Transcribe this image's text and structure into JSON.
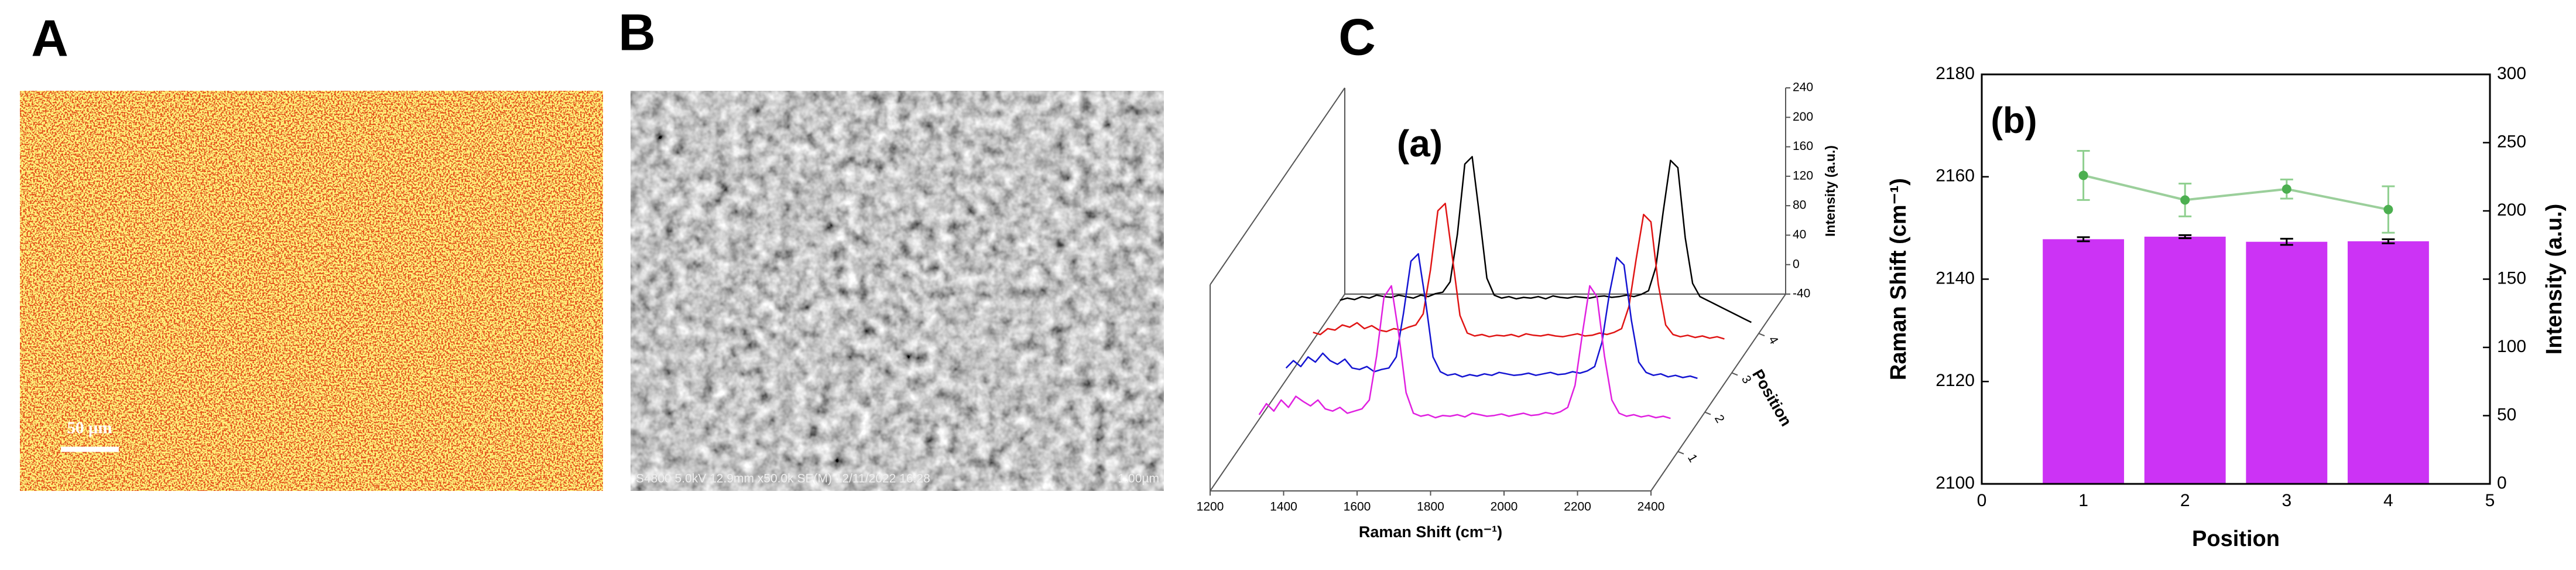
{
  "panels": {
    "A": {
      "label": "A",
      "scale_bar": "50 µm"
    },
    "B": {
      "label": "B",
      "caption": "S4800 5.0kV 12.9mm x50.0k SE(M) 12/11/2022 16:28",
      "scale_bar": "1.00µm"
    },
    "C": {
      "label": "C"
    }
  },
  "chart_data": [
    {
      "type": "waterfall",
      "annotation": "(a)",
      "xlabel": "Raman Shift (cm⁻¹)",
      "ylabel": "Intensity (a.u.)",
      "zlabel": "Position",
      "x": [
        1260,
        1280,
        1300,
        1320,
        1340,
        1360,
        1380,
        1400,
        1420,
        1440,
        1460,
        1480,
        1500,
        1520,
        1540,
        1560,
        1580,
        1600,
        1620,
        1640,
        1660,
        1680,
        1700,
        1720,
        1740,
        1760,
        1780,
        1800,
        1820,
        1840,
        1860,
        1880,
        1900,
        1920,
        1940,
        1960,
        1980,
        2000,
        2020,
        2040,
        2060,
        2080,
        2100,
        2120,
        2140,
        2160,
        2180,
        2200,
        2220,
        2240,
        2260,
        2280,
        2300,
        2320,
        2340,
        2360,
        2380
      ],
      "xlim": [
        1200,
        2400
      ],
      "xticks": [
        1200,
        1400,
        1600,
        1800,
        2000,
        2200,
        2400
      ],
      "ylim": [
        -40,
        240
      ],
      "yticks": [
        -40,
        0,
        40,
        80,
        120,
        160,
        200,
        240
      ],
      "zlim": [
        0,
        5
      ],
      "zticks": [
        1,
        2,
        3,
        4
      ],
      "series": [
        {
          "color": "#e020e0",
          "values": [
            10,
            25,
            15,
            30,
            20,
            35,
            28,
            22,
            30,
            18,
            15,
            20,
            12,
            15,
            18,
            30,
            90,
            170,
            185,
            120,
            40,
            12,
            8,
            10,
            6,
            9,
            8,
            10,
            7,
            12,
            10,
            8,
            9,
            11,
            8,
            10,
            12,
            9,
            10,
            13,
            11,
            14,
            20,
            50,
            120,
            185,
            170,
            90,
            30,
            12,
            8,
            10,
            7,
            9,
            6,
            8,
            5
          ]
        },
        {
          "color": "#1414d2",
          "values": [
            20,
            30,
            22,
            35,
            28,
            40,
            30,
            25,
            32,
            20,
            18,
            22,
            15,
            18,
            20,
            35,
            95,
            165,
            175,
            110,
            35,
            15,
            10,
            12,
            8,
            11,
            9,
            12,
            10,
            14,
            12,
            10,
            11,
            13,
            10,
            12,
            14,
            11,
            12,
            15,
            13,
            16,
            22,
            55,
            120,
            170,
            160,
            85,
            28,
            14,
            10,
            12,
            8,
            10,
            7,
            9,
            6
          ]
        },
        {
          "color": "#e01414",
          "values": [
            15,
            12,
            20,
            18,
            25,
            22,
            28,
            20,
            24,
            18,
            16,
            20,
            18,
            22,
            25,
            40,
            100,
            180,
            190,
            115,
            38,
            14,
            10,
            12,
            9,
            11,
            10,
            12,
            9,
            13,
            11,
            10,
            12,
            10,
            9,
            11,
            13,
            10,
            11,
            14,
            12,
            15,
            20,
            50,
            115,
            175,
            165,
            80,
            25,
            12,
            9,
            11,
            8,
            10,
            7,
            9,
            6
          ]
        },
        {
          "color": "#000000",
          "values": [
            5,
            8,
            6,
            10,
            8,
            12,
            10,
            9,
            12,
            10,
            8,
            12,
            10,
            14,
            16,
            30,
            95,
            190,
            200,
            120,
            35,
            12,
            8,
            10,
            7,
            9,
            8,
            10,
            7,
            11,
            9,
            8,
            10,
            9,
            8,
            10,
            11,
            9,
            10,
            12,
            10,
            13,
            18,
            50,
            125,
            195,
            185,
            90,
            28,
            10,
            5,
            0,
            -5,
            -10,
            -15,
            -20,
            -25
          ]
        }
      ]
    },
    {
      "type": "bar",
      "annotation": "(b)",
      "xlabel": "Position",
      "ylabel": "Raman Shift (cm⁻¹)",
      "y2label": "Intensity (a.u.)",
      "x": [
        1,
        2,
        3,
        4
      ],
      "xlim": [
        0,
        5
      ],
      "xticks": [
        0,
        1,
        2,
        3,
        4,
        5
      ],
      "ylim": [
        2100,
        2180
      ],
      "yticks": [
        2100,
        2120,
        2140,
        2160,
        2180
      ],
      "y2lim": [
        0,
        300
      ],
      "y2ticks": [
        0,
        50,
        100,
        150,
        200,
        250,
        300
      ],
      "bar_width": 0.8,
      "series": [
        {
          "type": "bar",
          "color": "#cc33f5",
          "values": [
            2147.8,
            2148.3,
            2147.3,
            2147.4
          ],
          "errors": [
            0.4,
            0.3,
            0.6,
            0.4
          ]
        },
        {
          "type": "line",
          "axis": "y2",
          "color": "#4caf50",
          "values": [
            226,
            208,
            216,
            201
          ],
          "errors": [
            18,
            12,
            7,
            17
          ]
        }
      ]
    }
  ]
}
